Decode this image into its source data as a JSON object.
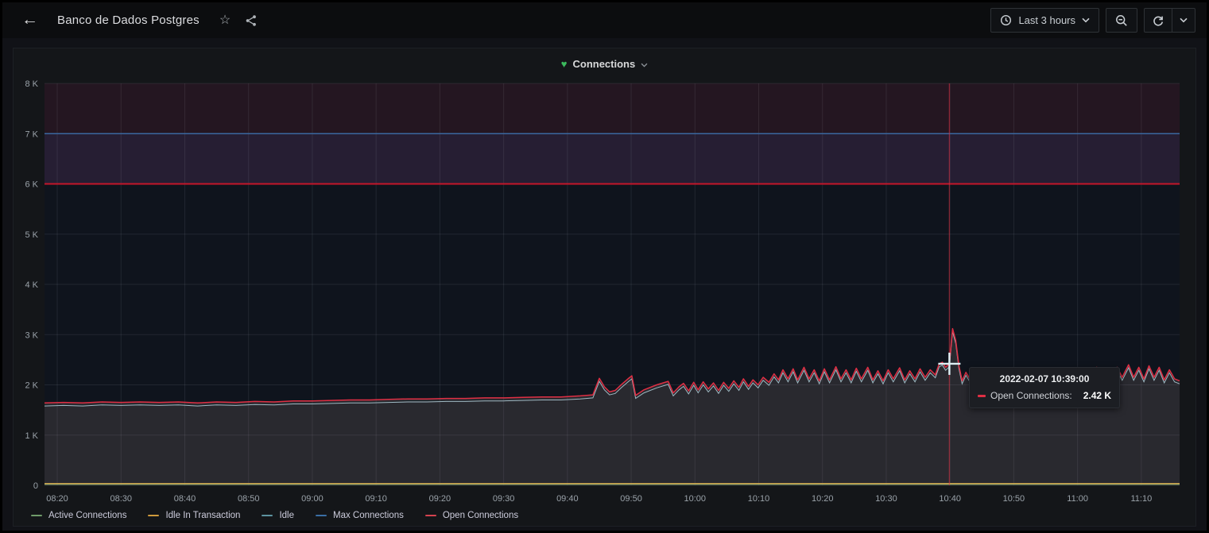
{
  "header": {
    "title": "Banco de Dados Postgres",
    "icons": {
      "back": "←",
      "star": "☆"
    }
  },
  "toolbar": {
    "time_range_label": "Last 3 hours"
  },
  "panel": {
    "title": "Connections",
    "health_color": "#3cba5d",
    "health_icon": "♥"
  },
  "tooltip": {
    "timestamp": "2022-02-07 10:39:00",
    "series_label": "Open Connections:",
    "value": "2.42 K",
    "color": "#e02f44"
  },
  "legend": {
    "items": [
      {
        "label": "Active Connections",
        "color": "#6f9b6a"
      },
      {
        "label": "Idle In Transaction",
        "color": "#cf9a3c"
      },
      {
        "label": "Idle",
        "color": "#5d93a0"
      },
      {
        "label": "Max Connections",
        "color": "#3a6ea5"
      },
      {
        "label": "Open Connections",
        "color": "#d5434f"
      }
    ]
  },
  "chart_data": {
    "type": "line",
    "title": "Connections",
    "x_range_minutes": [
      498,
      676
    ],
    "y_range": [
      0,
      8
    ],
    "y_unit": "K",
    "x_tick_minutes": [
      500,
      510,
      520,
      530,
      540,
      550,
      560,
      570,
      580,
      590,
      600,
      610,
      620,
      630,
      640,
      650,
      660,
      670
    ],
    "x_tick_labels": [
      "08:20",
      "08:30",
      "08:40",
      "08:50",
      "09:00",
      "09:10",
      "09:20",
      "09:30",
      "09:40",
      "09:50",
      "10:00",
      "10:10",
      "10:20",
      "10:30",
      "10:40",
      "10:50",
      "11:00",
      "11:10"
    ],
    "y_tick_values": [
      0,
      1,
      2,
      3,
      4,
      5,
      6,
      7,
      8
    ],
    "y_tick_labels": [
      "0",
      "1 K",
      "2 K",
      "3 K",
      "4 K",
      "5 K",
      "6 K",
      "7 K",
      "8 K"
    ],
    "plot_bg": "#0f141d",
    "grid_color": "rgba(201,209,217,0.10)",
    "alert_threshold": {
      "value": 6,
      "line_color": "#c4162a",
      "region_fill": "rgba(224,47,68,0.10)"
    },
    "max_band": {
      "from": 6,
      "to": 7,
      "fill": "rgba(63,110,217,0.10)"
    },
    "crosshair": {
      "x_minutes": 639.9,
      "cursor_value": 2.42,
      "line_color": "rgba(224,47,68,0.55)",
      "cursor_color": "#dff0f5"
    },
    "series": [
      {
        "name": "Active Connections",
        "color": "#6f9b6a",
        "constant": 0.02
      },
      {
        "name": "Idle In Transaction",
        "color": "#dfae4f",
        "constant": 0.035
      },
      {
        "name": "Idle",
        "color": "#9fb9c3",
        "offset_from": "Open Connections",
        "offset": -0.06
      },
      {
        "name": "Max Connections",
        "color": "#3a68a0",
        "constant": 7
      },
      {
        "name": "Open Connections",
        "color": "#e02f44",
        "fill": "rgba(204,172,162,0.14)",
        "points": [
          [
            498,
            1.64
          ],
          [
            501,
            1.65
          ],
          [
            504,
            1.64
          ],
          [
            507,
            1.66
          ],
          [
            510,
            1.65
          ],
          [
            513,
            1.66
          ],
          [
            516,
            1.65
          ],
          [
            519,
            1.66
          ],
          [
            522,
            1.64
          ],
          [
            525,
            1.66
          ],
          [
            528,
            1.65
          ],
          [
            531,
            1.67
          ],
          [
            534,
            1.66
          ],
          [
            537,
            1.68
          ],
          [
            540,
            1.68
          ],
          [
            543,
            1.69
          ],
          [
            546,
            1.7
          ],
          [
            549,
            1.7
          ],
          [
            552,
            1.71
          ],
          [
            555,
            1.72
          ],
          [
            558,
            1.72
          ],
          [
            561,
            1.73
          ],
          [
            564,
            1.73
          ],
          [
            567,
            1.74
          ],
          [
            570,
            1.74
          ],
          [
            573,
            1.75
          ],
          [
            576,
            1.76
          ],
          [
            579,
            1.76
          ],
          [
            582,
            1.78
          ],
          [
            584,
            1.8
          ],
          [
            585,
            2.13
          ],
          [
            585.8,
            1.96
          ],
          [
            586.6,
            1.86
          ],
          [
            587.5,
            1.89
          ],
          [
            588.5,
            2.01
          ],
          [
            589.5,
            2.12
          ],
          [
            590.1,
            2.18
          ],
          [
            590.7,
            1.79
          ],
          [
            592,
            1.9
          ],
          [
            594,
            2.0
          ],
          [
            595.8,
            2.07
          ],
          [
            596.6,
            1.84
          ],
          [
            597.5,
            1.96
          ],
          [
            598.2,
            2.03
          ],
          [
            599,
            1.88
          ],
          [
            599.8,
            2.05
          ],
          [
            600.5,
            1.9
          ],
          [
            601.3,
            2.06
          ],
          [
            602.1,
            1.92
          ],
          [
            602.9,
            2.04
          ],
          [
            603.7,
            1.89
          ],
          [
            604.5,
            2.05
          ],
          [
            605.3,
            1.93
          ],
          [
            606.1,
            2.08
          ],
          [
            606.9,
            1.95
          ],
          [
            607.6,
            2.12
          ],
          [
            608.4,
            1.97
          ],
          [
            609.1,
            2.1
          ],
          [
            609.9,
            2.0
          ],
          [
            610.7,
            2.15
          ],
          [
            611.6,
            2.05
          ],
          [
            612.4,
            2.22
          ],
          [
            613.1,
            2.1
          ],
          [
            613.8,
            2.3
          ],
          [
            614.6,
            2.12
          ],
          [
            615.4,
            2.32
          ],
          [
            616.1,
            2.1
          ],
          [
            617.1,
            2.35
          ],
          [
            617.9,
            2.12
          ],
          [
            618.7,
            2.3
          ],
          [
            619.5,
            2.08
          ],
          [
            620.3,
            2.32
          ],
          [
            621.1,
            2.1
          ],
          [
            622.1,
            2.36
          ],
          [
            622.9,
            2.12
          ],
          [
            623.7,
            2.3
          ],
          [
            624.5,
            2.1
          ],
          [
            625.3,
            2.33
          ],
          [
            626.1,
            2.12
          ],
          [
            627.1,
            2.35
          ],
          [
            627.9,
            2.1
          ],
          [
            628.7,
            2.28
          ],
          [
            629.5,
            2.08
          ],
          [
            630.3,
            2.3
          ],
          [
            631.1,
            2.12
          ],
          [
            632.1,
            2.34
          ],
          [
            632.9,
            2.1
          ],
          [
            633.7,
            2.28
          ],
          [
            634.5,
            2.12
          ],
          [
            635.3,
            2.32
          ],
          [
            636.1,
            2.15
          ],
          [
            636.9,
            2.3
          ],
          [
            637.7,
            2.2
          ],
          [
            638.3,
            2.42
          ],
          [
            638.8,
            2.45
          ],
          [
            639.3,
            2.35
          ],
          [
            639.9,
            2.42
          ],
          [
            640.4,
            3.12
          ],
          [
            640.9,
            2.88
          ],
          [
            641.4,
            2.38
          ],
          [
            641.9,
            2.08
          ],
          [
            642.5,
            2.25
          ],
          [
            643.2,
            2.1
          ],
          [
            644,
            2.13
          ],
          [
            645,
            2.16
          ],
          [
            646,
            2.1
          ],
          [
            647,
            2.13
          ],
          [
            648,
            2.08
          ],
          [
            649,
            2.11
          ],
          [
            650,
            2.07
          ],
          [
            651,
            2.1
          ],
          [
            652,
            2.06
          ],
          [
            653,
            2.09
          ],
          [
            654,
            2.05
          ],
          [
            655,
            2.1
          ],
          [
            656,
            2.16
          ],
          [
            657,
            2.08
          ],
          [
            658,
            2.2
          ],
          [
            658.8,
            2.05
          ],
          [
            659.6,
            2.25
          ],
          [
            660.4,
            2.1
          ],
          [
            661.2,
            2.3
          ],
          [
            662,
            2.12
          ],
          [
            663,
            2.35
          ],
          [
            663.8,
            2.1
          ],
          [
            664.6,
            2.32
          ],
          [
            665.4,
            2.12
          ],
          [
            666.2,
            2.35
          ],
          [
            667,
            2.15
          ],
          [
            668,
            2.4
          ],
          [
            668.8,
            2.15
          ],
          [
            669.6,
            2.35
          ],
          [
            670.4,
            2.12
          ],
          [
            671.2,
            2.38
          ],
          [
            672,
            2.15
          ],
          [
            672.8,
            2.35
          ],
          [
            673.6,
            2.1
          ],
          [
            674.4,
            2.3
          ],
          [
            675.2,
            2.12
          ],
          [
            676,
            2.08
          ]
        ]
      }
    ]
  }
}
